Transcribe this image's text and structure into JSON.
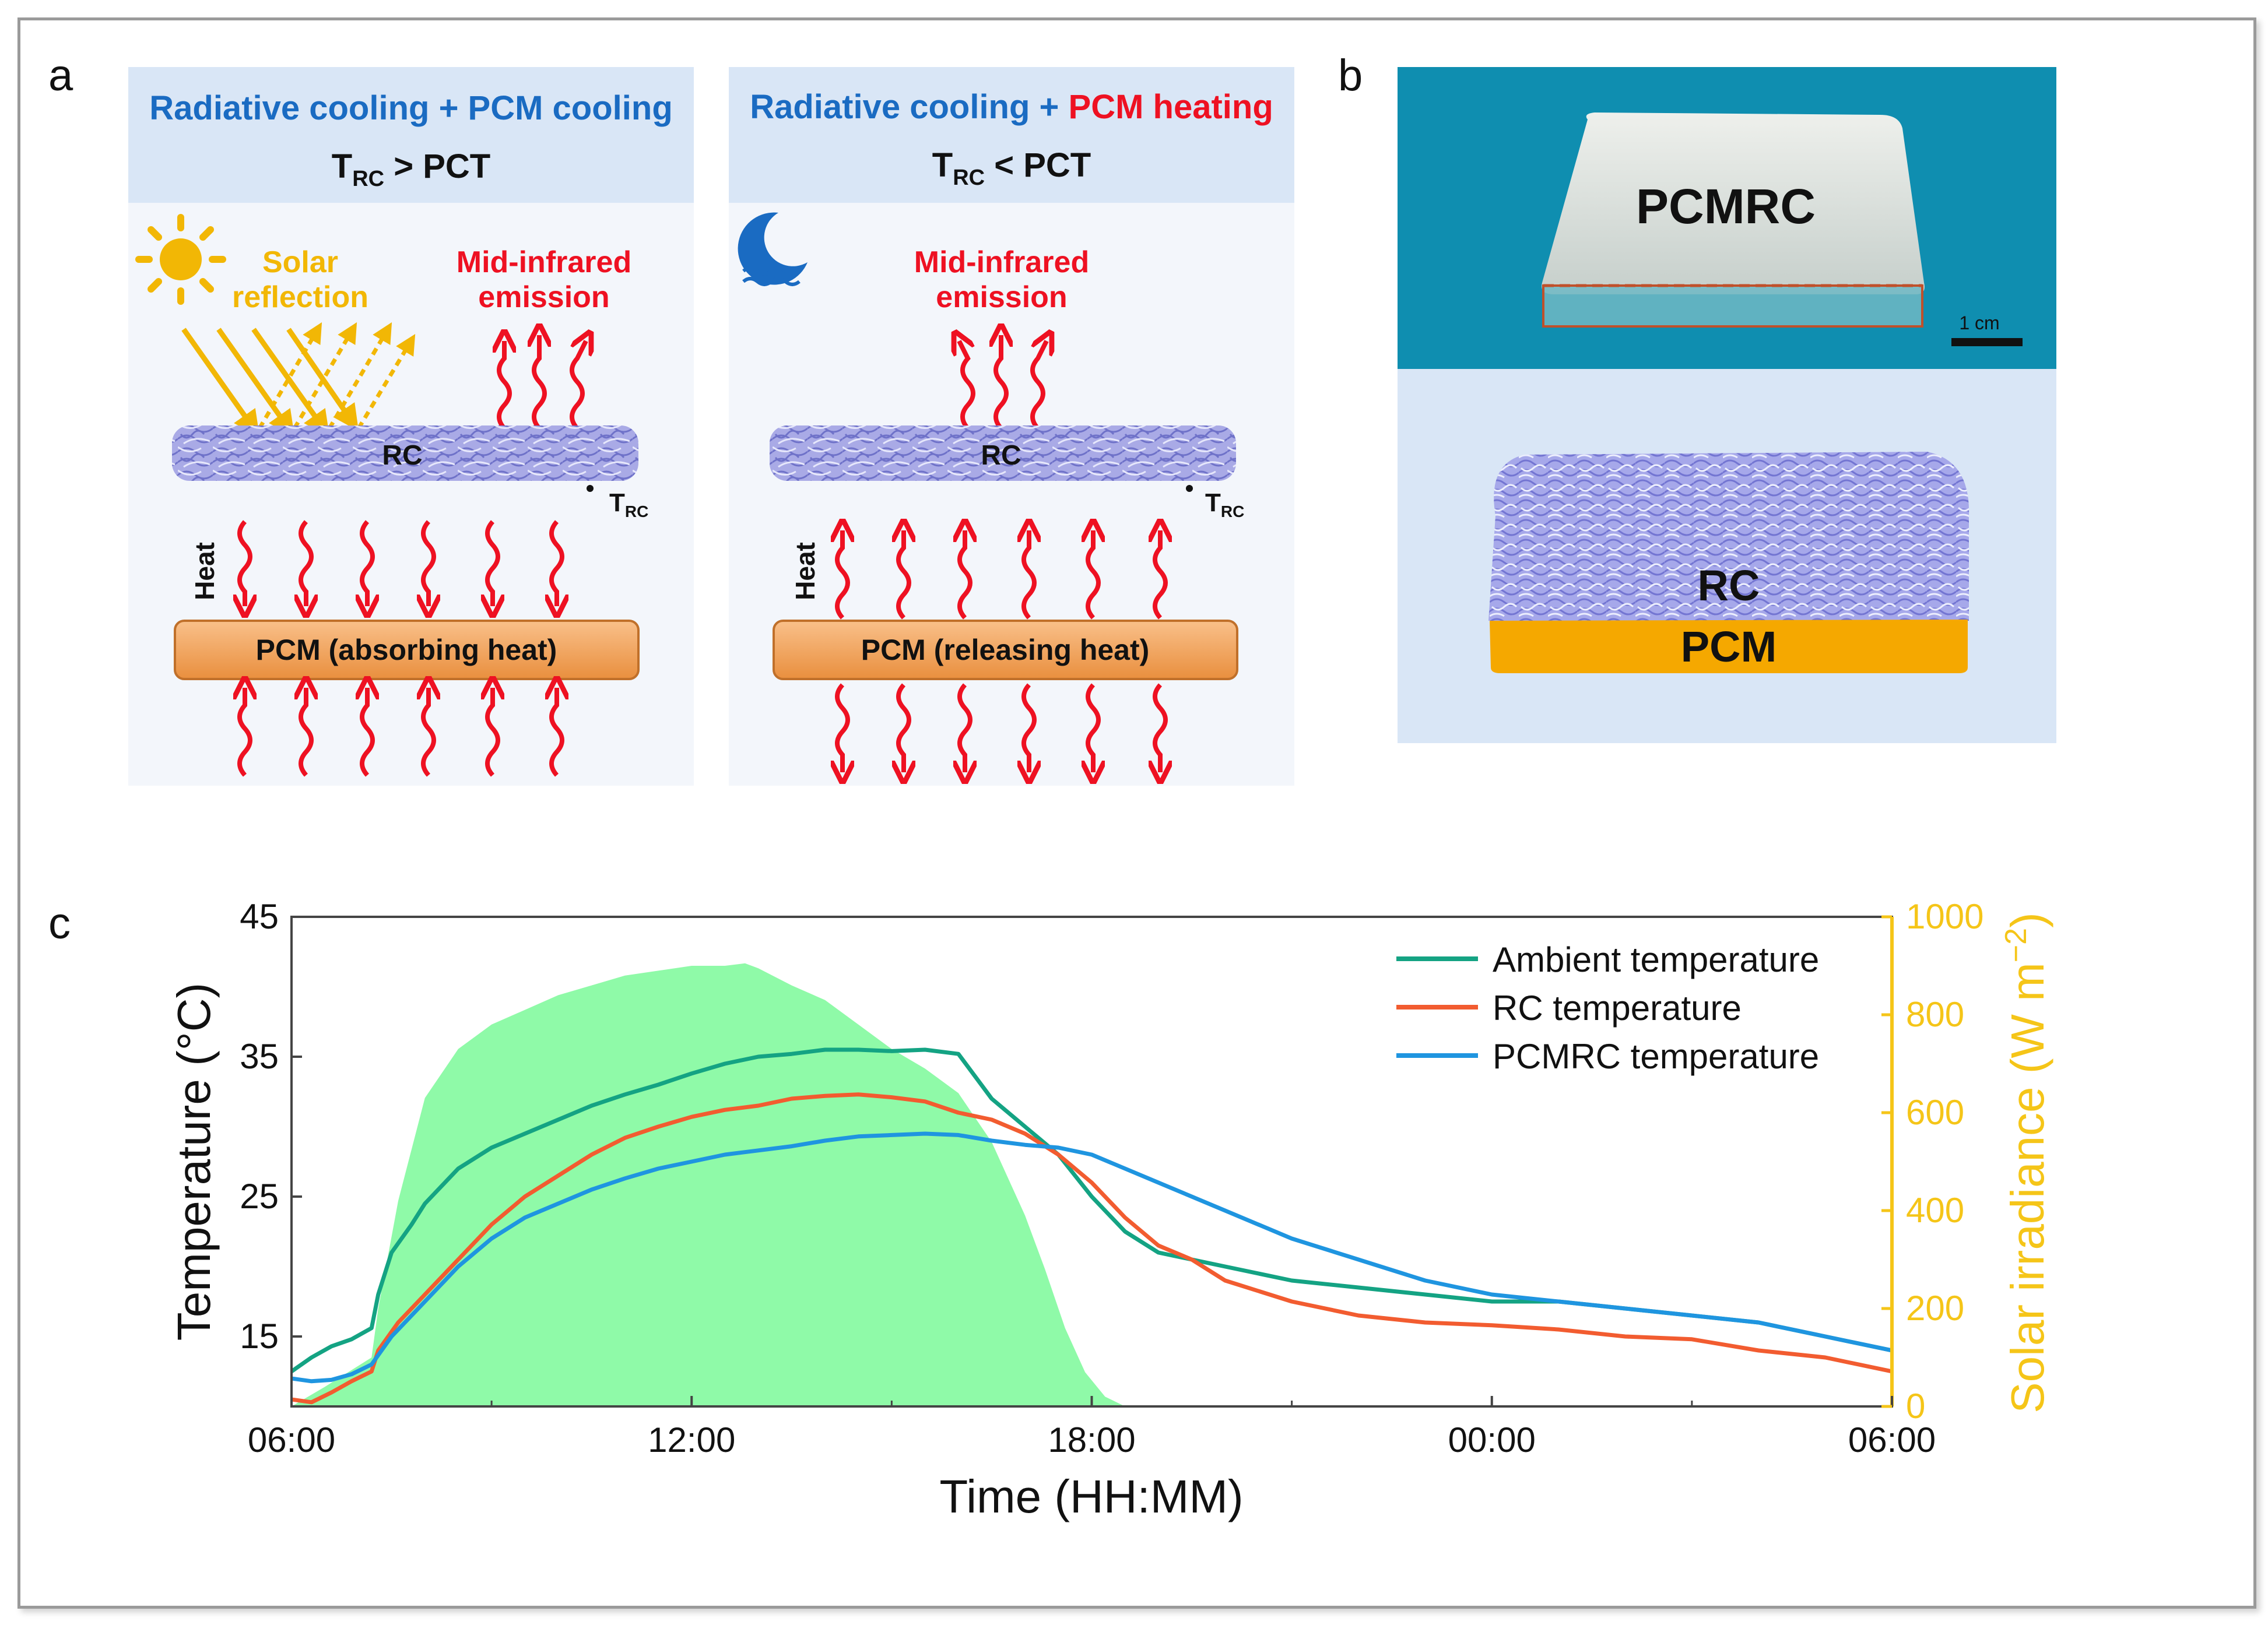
{
  "panel_labels": {
    "a": "a",
    "b": "b",
    "c": "c"
  },
  "panel_a": {
    "left": {
      "title_part1": "Radiative cooling + PCM cooling",
      "cond_t": "T",
      "cond_sub": "RC",
      "cond_rest": " > PCT",
      "solar_line1": "Solar",
      "solar_line2": "reflection",
      "mir_line1": "Mid-infrared",
      "mir_line2": "emission",
      "rc_label": "RC",
      "trc_t": "T",
      "trc_sub": "RC",
      "heat_label": "Heat",
      "pcm_label": "PCM (absorbing heat)"
    },
    "right": {
      "title_part1": "Radiative cooling + ",
      "title_part2": "PCM heating",
      "cond_t": "T",
      "cond_sub": "RC",
      "cond_rest": " < PCT",
      "mir_line1": "Mid-infrared",
      "mir_line2": "emission",
      "rc_label": "RC",
      "trc_t": "T",
      "trc_sub": "RC",
      "heat_label": "Heat",
      "pcm_label": "PCM (releasing heat)"
    }
  },
  "panel_b": {
    "photo_label": "PCMRC",
    "scale_label": "1 cm",
    "rc_label": "RC",
    "pcm_label": "PCM"
  },
  "colors": {
    "ambient": "#14a383",
    "rc": "#f25c30",
    "pcmrc": "#1f95e0",
    "solar_fill": "#8ffaa8",
    "solar_axis": "#f5c518",
    "title_blue": "#1a6bc2",
    "red": "#ee1122",
    "orange_text": "#f2b705",
    "header_bg": "#d9e6f6",
    "photo_bg": "#0f8eb0",
    "render_bg": "#d9e6f6"
  },
  "chart_data": {
    "type": "line",
    "title": "",
    "xlabel": "Time (HH:MM)",
    "ylabel": "Temperature (°C)",
    "y2label_main": "Solar irradiance (W m",
    "y2label_sup": "−2",
    "y2label_close": ")",
    "xlim": [
      0,
      24
    ],
    "ylim": [
      10,
      45
    ],
    "y2lim": [
      0,
      1000
    ],
    "x_ticks": [
      {
        "value": 0,
        "label": "06:00"
      },
      {
        "value": 6,
        "label": "12:00"
      },
      {
        "value": 12,
        "label": "18:00"
      },
      {
        "value": 18,
        "label": "00:00"
      },
      {
        "value": 24,
        "label": "06:00"
      }
    ],
    "y_ticks": [
      {
        "value": 15,
        "label": "15"
      },
      {
        "value": 25,
        "label": "25"
      },
      {
        "value": 35,
        "label": "35"
      },
      {
        "value": 45,
        "label": "45"
      }
    ],
    "y2_ticks": [
      {
        "value": 0,
        "label": "0"
      },
      {
        "value": 200,
        "label": "200"
      },
      {
        "value": 400,
        "label": "400"
      },
      {
        "value": 600,
        "label": "600"
      },
      {
        "value": 800,
        "label": "800"
      },
      {
        "value": 1000,
        "label": "1000"
      }
    ],
    "legend_position": "top-right",
    "solar_irradiance": {
      "name": "Solar irradiance",
      "x": [
        0,
        0.5,
        1.2,
        1.3,
        1.6,
        2,
        2.5,
        3,
        3.5,
        4,
        4.5,
        5,
        5.5,
        6,
        6.5,
        6.8,
        7,
        7.5,
        8,
        8.5,
        9,
        9.5,
        10,
        10.5,
        11,
        11.3,
        11.6,
        11.9,
        12.2,
        12.5,
        24
      ],
      "y": [
        0,
        40,
        100,
        200,
        420,
        630,
        730,
        780,
        810,
        840,
        860,
        880,
        890,
        900,
        900,
        905,
        895,
        860,
        830,
        780,
        730,
        690,
        640,
        540,
        390,
        280,
        160,
        70,
        20,
        0,
        0
      ]
    },
    "series": [
      {
        "name": "Ambient temperature",
        "x": [
          0,
          0.3,
          0.6,
          0.9,
          1.2,
          1.3,
          1.5,
          1.8,
          2,
          2.5,
          3,
          3.5,
          4,
          4.5,
          5,
          5.5,
          6,
          6.5,
          7,
          7.5,
          8,
          8.5,
          9,
          9.5,
          10,
          10.5,
          11,
          11.5,
          12,
          12.5,
          13,
          14,
          15,
          16,
          17,
          18,
          19,
          20,
          21,
          22,
          23,
          24
        ],
        "y": [
          12.5,
          13.5,
          14.3,
          14.8,
          15.6,
          18,
          21,
          23,
          24.5,
          27,
          28.5,
          29.5,
          30.5,
          31.5,
          32.3,
          33,
          33.8,
          34.5,
          35,
          35.2,
          35.5,
          35.5,
          35.4,
          35.5,
          35.2,
          32,
          30,
          28,
          25,
          22.5,
          21,
          20,
          19,
          18.5,
          18,
          17.5,
          17.5,
          17,
          16.5,
          16,
          15,
          14
        ]
      },
      {
        "name": "RC temperature",
        "x": [
          0,
          0.3,
          0.6,
          0.9,
          1.2,
          1.3,
          1.6,
          2,
          2.5,
          3,
          3.5,
          4,
          4.5,
          5,
          5.5,
          6,
          6.5,
          7,
          7.5,
          8,
          8.5,
          9,
          9.5,
          10,
          10.5,
          11,
          11.5,
          12,
          12.5,
          13,
          13.5,
          14,
          15,
          16,
          17,
          18,
          19,
          20,
          21,
          22,
          23,
          24
        ],
        "y": [
          10.5,
          10.3,
          11,
          11.8,
          12.5,
          14,
          16,
          18,
          20.5,
          23,
          25,
          26.5,
          28,
          29.2,
          30,
          30.7,
          31.2,
          31.5,
          32,
          32.2,
          32.3,
          32.1,
          31.8,
          31,
          30.5,
          29.5,
          28,
          26,
          23.5,
          21.5,
          20.5,
          19,
          17.5,
          16.5,
          16,
          15.8,
          15.5,
          15,
          14.8,
          14,
          13.5,
          12.5
        ]
      },
      {
        "name": "PCMRC temperature",
        "x": [
          0,
          0.3,
          0.6,
          0.9,
          1.2,
          1.5,
          2,
          2.5,
          3,
          3.5,
          4,
          4.5,
          5,
          5.5,
          6,
          6.5,
          7,
          7.5,
          8,
          8.5,
          9,
          9.5,
          10,
          10.5,
          11,
          11.5,
          12,
          13,
          14,
          15,
          16,
          17,
          18,
          19,
          20,
          21,
          22,
          23,
          24
        ],
        "y": [
          12,
          11.8,
          11.9,
          12.3,
          13,
          15,
          17.5,
          20,
          22,
          23.5,
          24.5,
          25.5,
          26.3,
          27,
          27.5,
          28,
          28.3,
          28.6,
          29,
          29.3,
          29.4,
          29.5,
          29.4,
          29,
          28.7,
          28.5,
          28,
          26,
          24,
          22,
          20.5,
          19,
          18,
          17.5,
          17,
          16.5,
          16,
          15,
          14
        ]
      }
    ]
  }
}
